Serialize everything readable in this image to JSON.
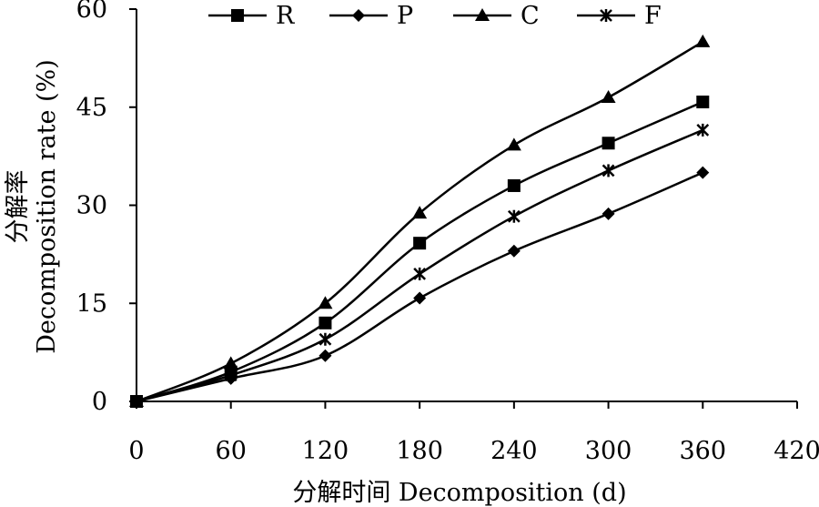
{
  "chart_data": {
    "type": "line",
    "x": [
      0,
      60,
      120,
      180,
      240,
      300,
      360
    ],
    "xlim": [
      0,
      420
    ],
    "ylim": [
      0,
      60
    ],
    "xticks": [
      "0",
      "60",
      "120",
      "180",
      "240",
      "300",
      "360",
      "420"
    ],
    "yticks": [
      "0",
      "15",
      "30",
      "45",
      "60"
    ],
    "xlabel": "分解时间 Decomposition (d)",
    "ylabel_cn": "分解率",
    "ylabel_en": "Decomposition rate (%)",
    "grid": false,
    "legend_position": "top",
    "series": [
      {
        "name": "R",
        "marker": "square",
        "values": [
          0,
          4.5,
          12,
          24.2,
          33,
          39.5,
          45.8
        ]
      },
      {
        "name": "P",
        "marker": "diamond",
        "values": [
          0,
          3.5,
          7,
          15.8,
          23,
          28.7,
          35
        ]
      },
      {
        "name": "C",
        "marker": "triangle",
        "values": [
          0,
          5.8,
          15,
          28.8,
          39.2,
          46.5,
          55
        ]
      },
      {
        "name": "F",
        "marker": "star",
        "values": [
          0,
          4,
          9.5,
          19.5,
          28.3,
          35.3,
          41.5
        ]
      }
    ]
  }
}
